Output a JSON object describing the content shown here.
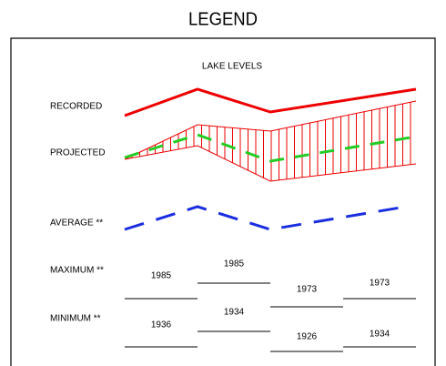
{
  "title": "LEGEND",
  "panel_title": "LAKE LEVELS",
  "rows": {
    "recorded": "RECORDED",
    "projected": "PROJECTED",
    "average": "AVERAGE **",
    "maximum": {
      "label": "MAXIMUM **",
      "years": [
        "1985",
        "1985",
        "1973",
        "1973"
      ]
    },
    "minimum": {
      "label": "MINIMUM **",
      "years": [
        "1936",
        "1934",
        "1926",
        "1934"
      ]
    }
  }
}
